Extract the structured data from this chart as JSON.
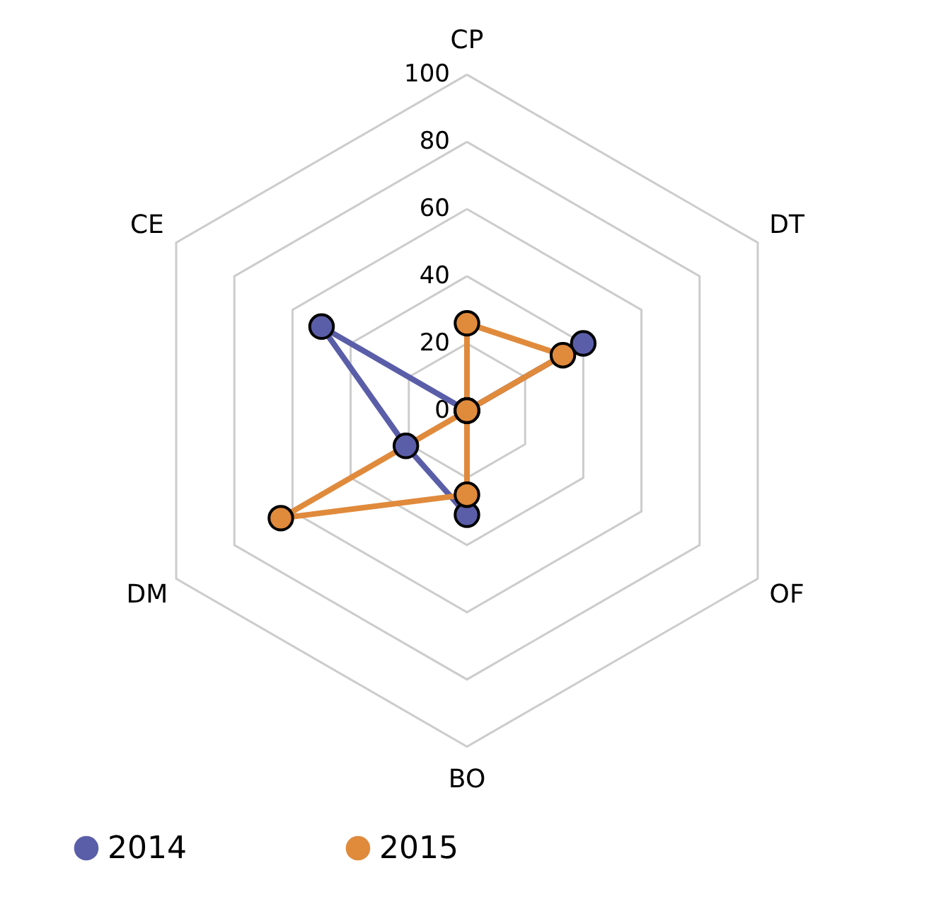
{
  "chart_data": {
    "type": "radar",
    "categories": [
      "CP",
      "DT",
      "OF",
      "BO",
      "DM",
      "CE"
    ],
    "series": [
      {
        "name": "2014",
        "color": "#5a5ea8",
        "values": [
          0,
          40,
          0,
          31,
          21,
          50
        ]
      },
      {
        "name": "2015",
        "color": "#e08a3c",
        "values": [
          26,
          33,
          0,
          25,
          64,
          0
        ]
      }
    ],
    "ylim": [
      0,
      100
    ],
    "yticks": [
      0,
      20,
      40,
      60,
      80,
      100
    ],
    "grid": true,
    "legend": "bottom",
    "marker": "circle"
  }
}
